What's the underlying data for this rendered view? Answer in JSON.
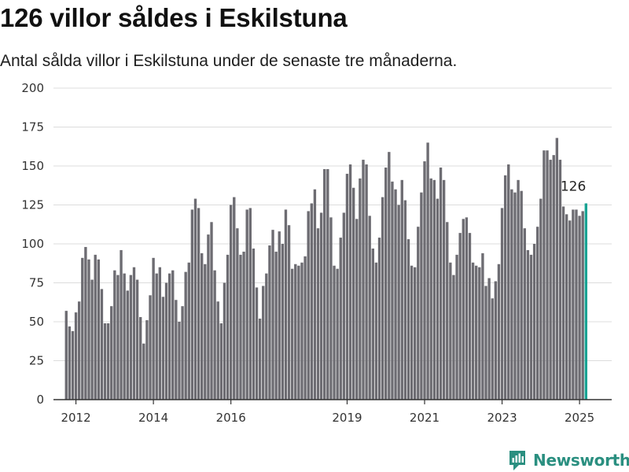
{
  "header": {
    "title": "126 villor såldes i Eskilstuna",
    "subtitle": "Antal sålda villor i Eskilstuna under de senaste tre månaderna."
  },
  "brand": {
    "name": "Newsworthy",
    "color": "#2a8f80"
  },
  "colors": {
    "bar": "#6d6c72",
    "highlight": "#17a393",
    "grid": "#dcdcdc"
  },
  "chart_data": {
    "type": "bar",
    "ylim": [
      0,
      200
    ],
    "yticks": [
      0,
      25,
      50,
      75,
      100,
      125,
      150,
      175,
      200
    ],
    "xlim": [
      2011.42,
      2025.83
    ],
    "xticks": [
      {
        "label": "2012",
        "value": 2012
      },
      {
        "label": "2014",
        "value": 2014
      },
      {
        "label": "2016",
        "value": 2016
      },
      {
        "label": "2019",
        "value": 2019
      },
      {
        "label": "2021",
        "value": 2021
      },
      {
        "label": "2023",
        "value": 2023
      },
      {
        "label": "2025",
        "value": 2025
      }
    ],
    "x_start": 2011.75,
    "x_step": 0.08333,
    "values": [
      57,
      47,
      44,
      56,
      63,
      91,
      98,
      90,
      77,
      93,
      90,
      71,
      49,
      49,
      60,
      83,
      80,
      96,
      81,
      70,
      80,
      85,
      77,
      53,
      36,
      51,
      67,
      91,
      81,
      85,
      66,
      75,
      81,
      83,
      64,
      50,
      60,
      82,
      88,
      122,
      129,
      123,
      94,
      87,
      106,
      114,
      83,
      63,
      49,
      75,
      93,
      125,
      130,
      110,
      93,
      95,
      122,
      123,
      97,
      72,
      52,
      73,
      81,
      99,
      109,
      95,
      108,
      100,
      122,
      112,
      84,
      87,
      86,
      88,
      92,
      121,
      126,
      135,
      110,
      120,
      148,
      148,
      117,
      86,
      84,
      104,
      120,
      145,
      151,
      136,
      116,
      142,
      154,
      151,
      118,
      97,
      88,
      104,
      130,
      149,
      159,
      140,
      135,
      125,
      141,
      128,
      103,
      86,
      85,
      111,
      133,
      153,
      165,
      142,
      141,
      129,
      149,
      141,
      114,
      88,
      80,
      93,
      107,
      116,
      117,
      107,
      88,
      86,
      85,
      94,
      73,
      78,
      65,
      76,
      87,
      123,
      144,
      151,
      135,
      133,
      141,
      134,
      110,
      96,
      93,
      100,
      111,
      129,
      160,
      160,
      154,
      157,
      168,
      154,
      124,
      119,
      115,
      122,
      122,
      118,
      121,
      126
    ],
    "highlight_value": 126,
    "annotation": "126"
  }
}
